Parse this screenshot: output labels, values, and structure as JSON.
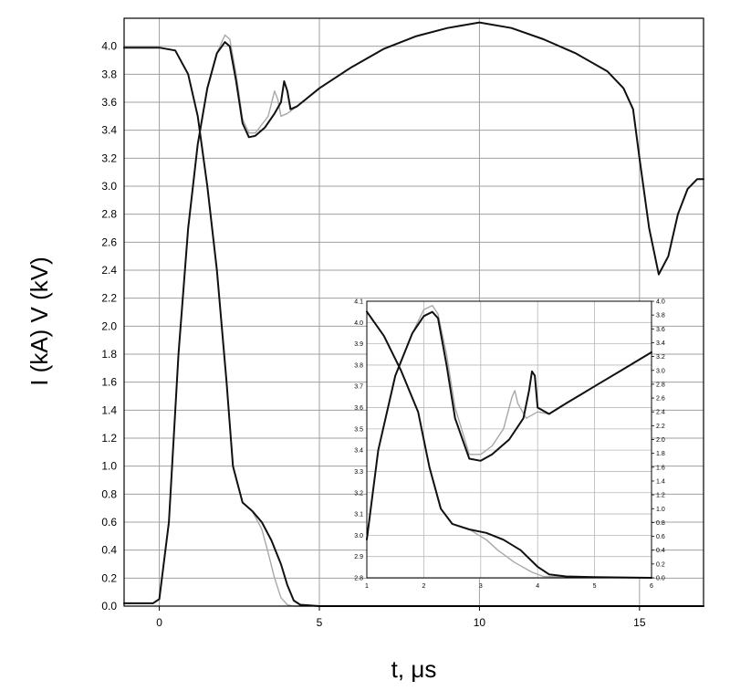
{
  "chart_data": [
    {
      "type": "line",
      "xlabel": "t, μs",
      "ylabel": "I (kA)  V (kV)",
      "xlim": [
        -1.1,
        17.0
      ],
      "ylim": [
        0.0,
        4.2
      ],
      "xticks": [
        0,
        5,
        10,
        15
      ],
      "yticks": [
        0.0,
        0.2,
        0.4,
        0.6,
        0.8,
        1.0,
        1.2,
        1.4,
        1.6,
        1.8,
        2.0,
        2.2,
        2.4,
        2.6,
        2.8,
        3.0,
        3.2,
        3.4,
        3.6,
        3.8,
        4.0
      ],
      "grid": true,
      "series": [
        {
          "color": "#111111",
          "x": [
            -1.1,
            0.0,
            0.5,
            0.9,
            1.2,
            1.5,
            1.8,
            2.1,
            2.3,
            2.6,
            2.9,
            3.2,
            3.5,
            3.8,
            4.0,
            4.2,
            4.4,
            5.0,
            6.0,
            7.0,
            8.0,
            9.0,
            10.0,
            11.0,
            12.0,
            13.0,
            14.0,
            14.5,
            14.8,
            15.1,
            15.4,
            15.6,
            15.9,
            16.2,
            16.5,
            16.8,
            17.0
          ],
          "y": [
            3.99,
            3.99,
            3.97,
            3.8,
            3.5,
            3.0,
            2.4,
            1.6,
            1.0,
            0.74,
            0.68,
            0.6,
            0.47,
            0.3,
            0.15,
            0.04,
            0.01,
            0.0,
            0.0,
            0.0,
            0.0,
            0.0,
            0.0,
            0.0,
            0.0,
            0.0,
            0.0,
            0.0,
            0.0,
            0.0,
            0.0,
            0.0,
            0.0,
            0.0,
            0.0,
            0.0,
            0.0
          ]
        },
        {
          "color": "#111111",
          "x": [
            -1.1,
            -0.2,
            0.0,
            0.3,
            0.6,
            0.9,
            1.2,
            1.5,
            1.8,
            2.05,
            2.2,
            2.4,
            2.6,
            2.8,
            3.0,
            3.3,
            3.6,
            3.8,
            3.9,
            4.0,
            4.1,
            4.3,
            5.0,
            6.0,
            7.0,
            8.0,
            9.0,
            10.0,
            11.0,
            12.0,
            13.0,
            14.0,
            14.5,
            14.8,
            15.0,
            15.3,
            15.6,
            15.9,
            16.2,
            16.5,
            16.8,
            17.0
          ],
          "y": [
            0.02,
            0.02,
            0.05,
            0.6,
            1.8,
            2.7,
            3.3,
            3.7,
            3.95,
            4.03,
            4.0,
            3.75,
            3.45,
            3.35,
            3.36,
            3.42,
            3.52,
            3.6,
            3.75,
            3.68,
            3.55,
            3.57,
            3.7,
            3.85,
            3.98,
            4.07,
            4.13,
            4.17,
            4.13,
            4.05,
            3.95,
            3.82,
            3.7,
            3.55,
            3.2,
            2.7,
            2.37,
            2.5,
            2.8,
            2.98,
            3.05,
            3.05
          ]
        },
        {
          "color": "#a8a8a8",
          "x": [
            -1.1,
            0.0,
            0.5,
            0.9,
            1.2,
            1.5,
            1.8,
            2.1,
            2.3,
            2.6,
            2.9,
            3.2,
            3.4,
            3.6,
            3.8,
            4.0,
            4.2,
            5.0,
            10.0,
            17.0
          ],
          "y": [
            3.99,
            3.99,
            3.97,
            3.8,
            3.5,
            3.0,
            2.4,
            1.6,
            1.0,
            0.74,
            0.68,
            0.55,
            0.38,
            0.2,
            0.06,
            0.01,
            0.0,
            0.0,
            0.0,
            0.0
          ]
        },
        {
          "color": "#a8a8a8",
          "x": [
            -1.1,
            -0.2,
            0.0,
            0.3,
            0.6,
            0.9,
            1.2,
            1.5,
            1.8,
            2.05,
            2.2,
            2.4,
            2.6,
            2.8,
            3.0,
            3.2,
            3.4,
            3.6,
            3.7,
            3.8,
            4.0,
            4.3,
            5.0,
            6.0,
            7.0,
            8.0,
            9.0,
            10.0,
            11.0,
            12.0,
            13.0,
            14.0,
            14.5,
            14.8,
            15.0,
            15.3,
            15.6,
            15.9,
            16.2,
            16.5,
            16.8,
            17.0
          ],
          "y": [
            0.02,
            0.02,
            0.05,
            0.6,
            1.8,
            2.7,
            3.3,
            3.7,
            3.95,
            4.08,
            4.05,
            3.8,
            3.48,
            3.38,
            3.38,
            3.44,
            3.5,
            3.68,
            3.62,
            3.5,
            3.52,
            3.57,
            3.7,
            3.85,
            3.98,
            4.07,
            4.13,
            4.17,
            4.13,
            4.05,
            3.95,
            3.82,
            3.7,
            3.55,
            3.2,
            2.7,
            2.37,
            2.5,
            2.8,
            2.98,
            3.05,
            3.05
          ]
        }
      ]
    },
    {
      "type": "line",
      "xlim": [
        1.0,
        6.0
      ],
      "ylim": [
        2.8,
        4.1
      ],
      "y2lim": [
        0.0,
        4.0
      ],
      "xticks": [
        1,
        2,
        3,
        4,
        5,
        6
      ],
      "yticks": [
        2.8,
        2.9,
        3.0,
        3.1,
        3.2,
        3.3,
        3.4,
        3.5,
        3.6,
        3.7,
        3.8,
        3.9,
        4.0,
        4.1
      ],
      "y2ticks": [
        0.0,
        0.2,
        0.4,
        0.6,
        0.8,
        1.0,
        1.2,
        1.4,
        1.6,
        1.8,
        2.0,
        2.2,
        2.4,
        2.6,
        2.8,
        3.0,
        3.2,
        3.4,
        3.6,
        3.8,
        4.0
      ],
      "grid": true,
      "series": [
        {
          "color": "#111111",
          "axis": "right",
          "x": [
            1.0,
            1.3,
            1.6,
            1.9,
            2.1,
            2.3,
            2.5,
            2.8,
            3.1,
            3.4,
            3.7,
            4.0,
            4.2,
            4.5,
            5.0,
            6.0
          ],
          "y": [
            3.85,
            3.5,
            3.0,
            2.4,
            1.6,
            1.0,
            0.78,
            0.7,
            0.65,
            0.55,
            0.4,
            0.16,
            0.05,
            0.02,
            0.01,
            0.0
          ]
        },
        {
          "color": "#111111",
          "axis": "left",
          "x": [
            1.0,
            1.2,
            1.5,
            1.8,
            2.0,
            2.15,
            2.25,
            2.4,
            2.55,
            2.8,
            3.0,
            3.2,
            3.5,
            3.75,
            3.85,
            3.9,
            3.95,
            4.0,
            4.2,
            4.5,
            5.0,
            5.5,
            6.0
          ],
          "y": [
            2.98,
            3.4,
            3.75,
            3.95,
            4.03,
            4.05,
            4.02,
            3.8,
            3.55,
            3.36,
            3.35,
            3.38,
            3.45,
            3.55,
            3.68,
            3.77,
            3.75,
            3.6,
            3.57,
            3.62,
            3.7,
            3.78,
            3.86
          ]
        },
        {
          "color": "#a8a8a8",
          "axis": "right",
          "x": [
            1.0,
            1.3,
            1.6,
            1.9,
            2.1,
            2.3,
            2.5,
            2.8,
            3.1,
            3.3,
            3.6,
            3.9,
            4.1,
            4.5,
            6.0
          ],
          "y": [
            3.85,
            3.5,
            3.0,
            2.4,
            1.6,
            1.0,
            0.78,
            0.7,
            0.55,
            0.4,
            0.22,
            0.08,
            0.02,
            0.01,
            0.0
          ]
        },
        {
          "color": "#a8a8a8",
          "axis": "left",
          "x": [
            1.0,
            1.2,
            1.5,
            1.8,
            2.0,
            2.15,
            2.25,
            2.4,
            2.55,
            2.8,
            3.0,
            3.2,
            3.4,
            3.55,
            3.6,
            3.65,
            3.8,
            4.0,
            4.2,
            4.5,
            5.0,
            6.0
          ],
          "y": [
            2.98,
            3.4,
            3.75,
            3.95,
            4.06,
            4.08,
            4.04,
            3.85,
            3.6,
            3.38,
            3.38,
            3.42,
            3.5,
            3.65,
            3.68,
            3.62,
            3.55,
            3.58,
            3.57,
            3.62,
            3.7,
            3.86
          ]
        }
      ]
    }
  ]
}
